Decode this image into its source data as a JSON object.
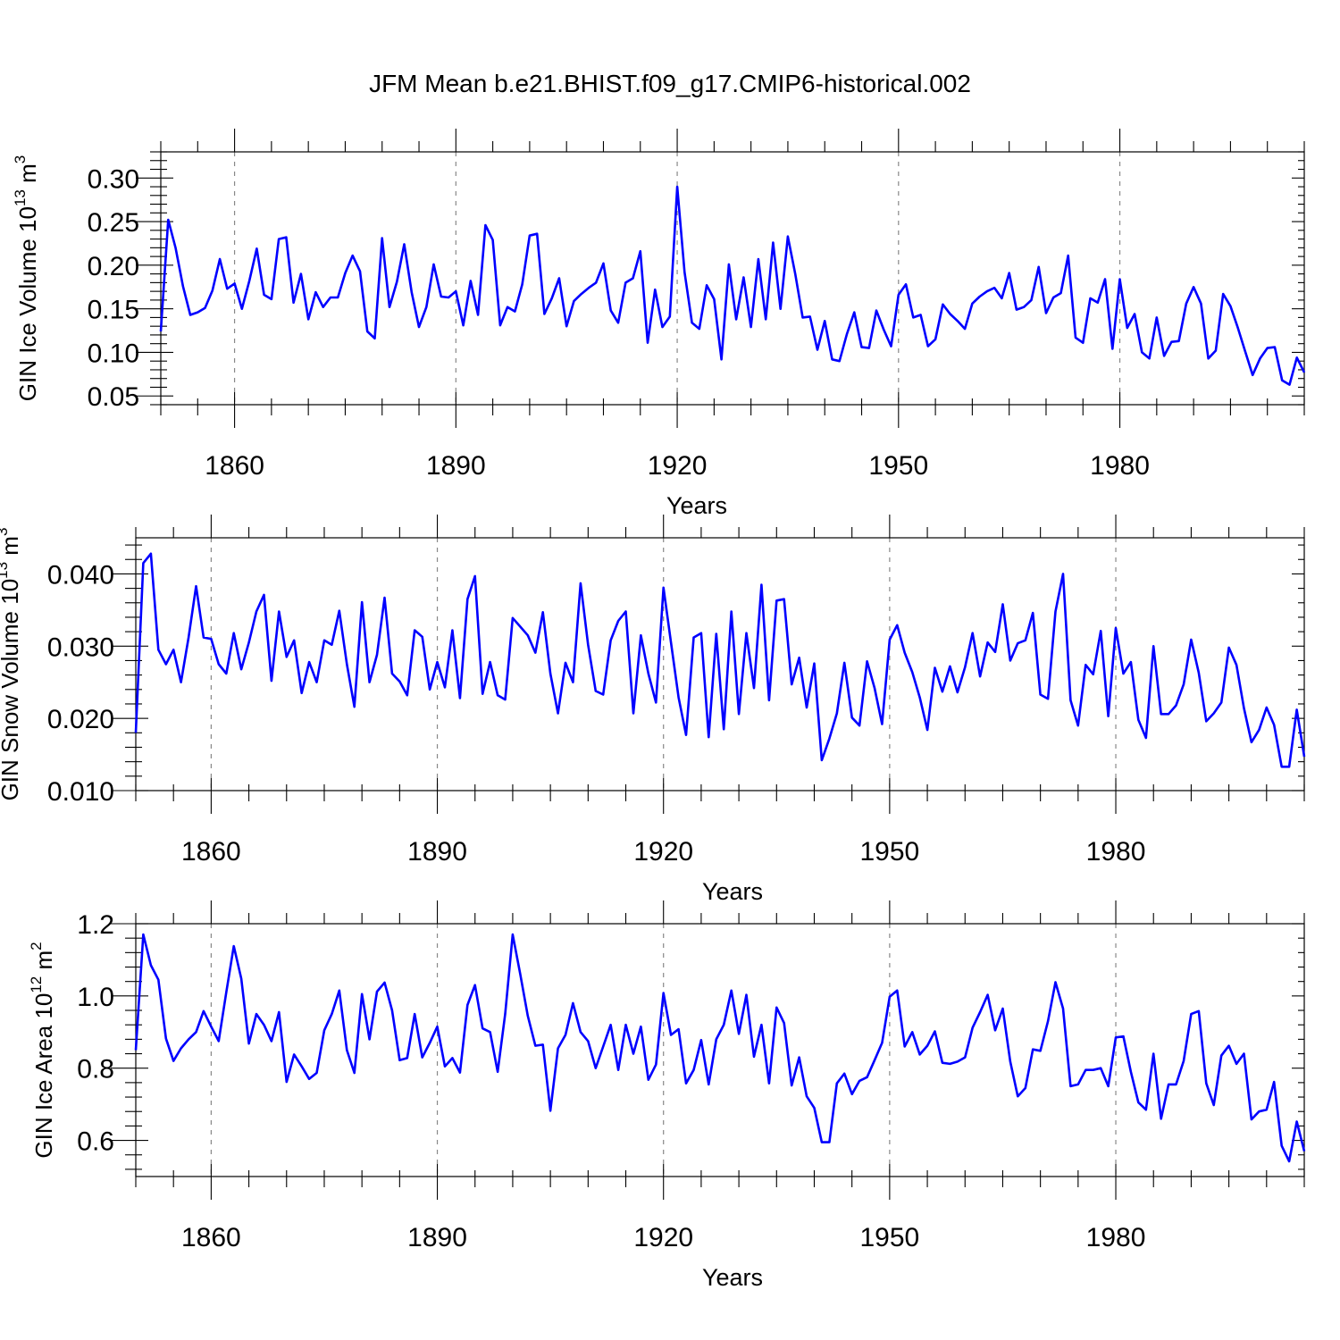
{
  "title": "JFM Mean b.e21.BHIST.f09_g17.CMIP6-historical.002",
  "chart_data": [
    {
      "type": "line",
      "ylabel": "GIN Ice Volume 10",
      "ylabel_exp": "13",
      "ylabel_unit": " m",
      "ylabel_unit_exp": "3",
      "xlabel": "Years",
      "xlim": [
        1850,
        2005
      ],
      "ylim": [
        0.04,
        0.33
      ],
      "yticks": [
        0.05,
        0.1,
        0.15,
        0.2,
        0.25,
        0.3
      ],
      "ytick_labels": [
        "0.05",
        "0.10",
        "0.15",
        "0.20",
        "0.25",
        "0.30"
      ],
      "xticks": [
        1860,
        1890,
        1920,
        1950,
        1980
      ],
      "xtick_labels": [
        "1860",
        "1890",
        "1920",
        "1950",
        "1980"
      ],
      "color": "#0000ff",
      "start_year": 1850,
      "values": [
        0.124,
        0.252,
        0.22,
        0.176,
        0.143,
        0.146,
        0.151,
        0.171,
        0.207,
        0.173,
        0.179,
        0.15,
        0.182,
        0.219,
        0.166,
        0.161,
        0.23,
        0.232,
        0.157,
        0.19,
        0.138,
        0.169,
        0.152,
        0.163,
        0.163,
        0.191,
        0.211,
        0.193,
        0.124,
        0.116,
        0.231,
        0.152,
        0.181,
        0.224,
        0.169,
        0.129,
        0.152,
        0.201,
        0.164,
        0.163,
        0.17,
        0.131,
        0.182,
        0.143,
        0.246,
        0.229,
        0.131,
        0.152,
        0.147,
        0.178,
        0.234,
        0.236,
        0.144,
        0.162,
        0.185,
        0.13,
        0.159,
        0.167,
        0.174,
        0.18,
        0.202,
        0.148,
        0.134,
        0.18,
        0.185,
        0.216,
        0.111,
        0.172,
        0.129,
        0.141,
        0.29,
        0.192,
        0.134,
        0.127,
        0.177,
        0.161,
        0.092,
        0.201,
        0.138,
        0.186,
        0.129,
        0.207,
        0.138,
        0.226,
        0.15,
        0.233,
        0.19,
        0.14,
        0.141,
        0.103,
        0.136,
        0.092,
        0.09,
        0.121,
        0.146,
        0.106,
        0.105,
        0.148,
        0.126,
        0.107,
        0.166,
        0.178,
        0.14,
        0.143,
        0.107,
        0.115,
        0.155,
        0.144,
        0.136,
        0.127,
        0.156,
        0.164,
        0.17,
        0.174,
        0.162,
        0.191,
        0.149,
        0.152,
        0.16,
        0.198,
        0.145,
        0.163,
        0.168,
        0.211,
        0.117,
        0.111,
        0.162,
        0.157,
        0.184,
        0.104,
        0.184,
        0.128,
        0.144,
        0.1,
        0.093,
        0.14,
        0.096,
        0.112,
        0.113,
        0.156,
        0.175,
        0.156,
        0.093,
        0.102,
        0.167,
        0.153,
        0.128,
        0.101,
        0.074,
        0.093,
        0.105,
        0.106,
        0.068,
        0.063,
        0.094,
        0.077
      ]
    },
    {
      "type": "line",
      "ylabel": "GIN Snow Volume 10",
      "ylabel_exp": "13",
      "ylabel_unit": " m",
      "ylabel_unit_exp": "3",
      "xlabel": "Years",
      "xlim": [
        1850,
        2005
      ],
      "ylim": [
        0.01,
        0.045
      ],
      "yticks": [
        0.01,
        0.02,
        0.03,
        0.04
      ],
      "ytick_labels": [
        "0.010",
        "0.020",
        "0.030",
        "0.040"
      ],
      "xticks": [
        1860,
        1890,
        1920,
        1950,
        1980
      ],
      "xtick_labels": [
        "1860",
        "1890",
        "1920",
        "1950",
        "1980"
      ],
      "color": "#0000ff",
      "start_year": 1850,
      "values": [
        0.018,
        0.0415,
        0.0428,
        0.0295,
        0.0275,
        0.0295,
        0.025,
        0.0312,
        0.0383,
        0.0312,
        0.031,
        0.0275,
        0.0262,
        0.0318,
        0.0268,
        0.0305,
        0.0348,
        0.0371,
        0.0252,
        0.0348,
        0.0285,
        0.0308,
        0.0235,
        0.0278,
        0.025,
        0.0308,
        0.0302,
        0.0349,
        0.0275,
        0.0216,
        0.0361,
        0.025,
        0.0288,
        0.0367,
        0.0262,
        0.0251,
        0.0232,
        0.0322,
        0.0313,
        0.024,
        0.0278,
        0.0243,
        0.0322,
        0.0228,
        0.0365,
        0.0397,
        0.0234,
        0.0278,
        0.0232,
        0.0226,
        0.0339,
        0.0327,
        0.0315,
        0.0291,
        0.0347,
        0.0262,
        0.0207,
        0.0277,
        0.025,
        0.0387,
        0.0302,
        0.0238,
        0.0233,
        0.0308,
        0.0335,
        0.0348,
        0.0207,
        0.0315,
        0.0262,
        0.0222,
        0.0381,
        0.0305,
        0.0229,
        0.0177,
        0.0312,
        0.0318,
        0.0174,
        0.0317,
        0.0185,
        0.0348,
        0.0206,
        0.0318,
        0.0242,
        0.0385,
        0.0225,
        0.0363,
        0.0365,
        0.0247,
        0.0284,
        0.0215,
        0.0276,
        0.0142,
        0.0172,
        0.0207,
        0.0277,
        0.0201,
        0.019,
        0.0279,
        0.0242,
        0.0192,
        0.0309,
        0.0329,
        0.0291,
        0.0264,
        0.0229,
        0.0184,
        0.027,
        0.0237,
        0.0272,
        0.0236,
        0.0271,
        0.0318,
        0.0258,
        0.0305,
        0.0292,
        0.0358,
        0.028,
        0.0304,
        0.0308,
        0.0346,
        0.0233,
        0.0227,
        0.0348,
        0.04,
        0.0225,
        0.019,
        0.0274,
        0.0261,
        0.0321,
        0.0203,
        0.0325,
        0.0262,
        0.0278,
        0.0198,
        0.0173,
        0.03,
        0.0206,
        0.0206,
        0.0218,
        0.0247,
        0.0309,
        0.0263,
        0.0196,
        0.0207,
        0.0222,
        0.0298,
        0.0274,
        0.0214,
        0.0167,
        0.0184,
        0.0215,
        0.0191,
        0.0133,
        0.0133,
        0.0212,
        0.0147
      ]
    },
    {
      "type": "line",
      "ylabel": "GIN Ice Area 10",
      "ylabel_exp": "12",
      "ylabel_unit": " m",
      "ylabel_unit_exp": "2",
      "xlabel": "Years",
      "xlim": [
        1850,
        2005
      ],
      "ylim": [
        0.5,
        1.2
      ],
      "yticks": [
        0.6,
        0.8,
        1.0,
        1.2
      ],
      "ytick_labels": [
        "0.6",
        "0.8",
        "1.0",
        "1.2"
      ],
      "xticks": [
        1860,
        1890,
        1920,
        1950,
        1980
      ],
      "xtick_labels": [
        "1860",
        "1890",
        "1920",
        "1950",
        "1980"
      ],
      "color": "#0000ff",
      "start_year": 1850,
      "values": [
        0.85,
        1.17,
        1.085,
        1.045,
        0.882,
        0.82,
        0.855,
        0.88,
        0.9,
        0.958,
        0.915,
        0.875,
        1.01,
        1.138,
        1.048,
        0.868,
        0.95,
        0.92,
        0.875,
        0.955,
        0.762,
        0.838,
        0.805,
        0.77,
        0.787,
        0.905,
        0.95,
        1.015,
        0.85,
        0.787,
        1.005,
        0.88,
        1.012,
        1.037,
        0.96,
        0.822,
        0.828,
        0.95,
        0.83,
        0.87,
        0.915,
        0.805,
        0.828,
        0.788,
        0.975,
        1.03,
        0.91,
        0.9,
        0.79,
        0.95,
        1.17,
        1.06,
        0.945,
        0.862,
        0.865,
        0.682,
        0.855,
        0.892,
        0.98,
        0.9,
        0.875,
        0.8,
        0.86,
        0.92,
        0.795,
        0.92,
        0.84,
        0.915,
        0.768,
        0.81,
        1.008,
        0.892,
        0.908,
        0.758,
        0.795,
        0.878,
        0.755,
        0.88,
        0.92,
        1.015,
        0.895,
        1.003,
        0.832,
        0.92,
        0.758,
        0.968,
        0.925,
        0.752,
        0.83,
        0.722,
        0.69,
        0.595,
        0.595,
        0.758,
        0.785,
        0.728,
        0.765,
        0.775,
        0.822,
        0.87,
        0.998,
        1.015,
        0.86,
        0.9,
        0.838,
        0.862,
        0.902,
        0.815,
        0.812,
        0.818,
        0.83,
        0.912,
        0.955,
        1.003,
        0.905,
        0.965,
        0.818,
        0.722,
        0.745,
        0.852,
        0.848,
        0.93,
        1.038,
        0.965,
        0.75,
        0.755,
        0.795,
        0.795,
        0.8,
        0.75,
        0.885,
        0.888,
        0.79,
        0.705,
        0.685,
        0.84,
        0.66,
        0.755,
        0.755,
        0.82,
        0.95,
        0.958,
        0.758,
        0.698,
        0.835,
        0.862,
        0.812,
        0.84,
        0.658,
        0.68,
        0.685,
        0.762,
        0.585,
        0.542,
        0.652,
        0.57
      ]
    }
  ]
}
